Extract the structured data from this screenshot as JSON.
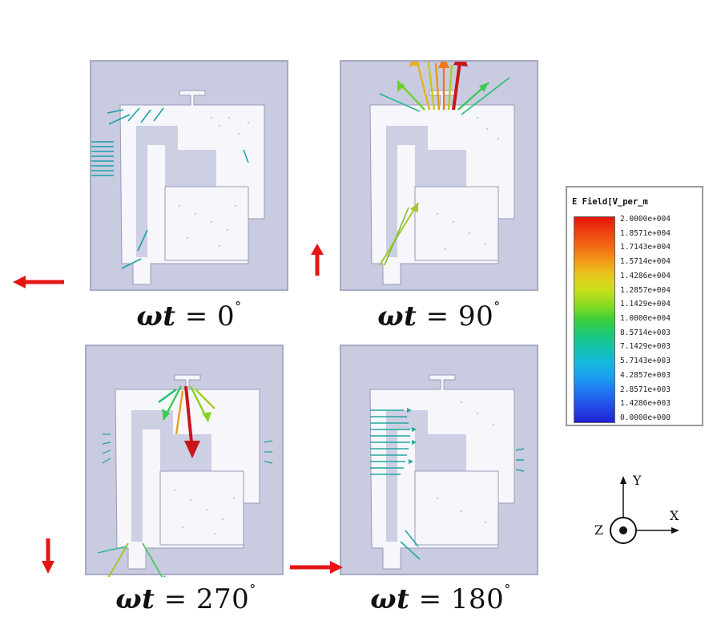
{
  "panels": [
    {
      "id": "0",
      "caption_prefix": "ωt",
      "equals": " = ",
      "angle": "0",
      "degree": "°"
    },
    {
      "id": "90",
      "caption_prefix": "ωt",
      "equals": " = ",
      "angle": "90",
      "degree": "°"
    },
    {
      "id": "270",
      "caption_prefix": "ωt",
      "equals": " = ",
      "angle": "270",
      "degree": "°"
    },
    {
      "id": "180",
      "caption_prefix": "ωt",
      "equals": " = ",
      "angle": "180",
      "degree": "°"
    }
  ],
  "legend": {
    "title": "E Field[V_per_m",
    "values": [
      "2.0000e+004",
      "1.8571e+004",
      "1.7143e+004",
      "1.5714e+004",
      "1.4286e+004",
      "1.2857e+004",
      "1.1429e+004",
      "1.0000e+004",
      "8.5714e+003",
      "7.1429e+003",
      "5.7143e+003",
      "4.2857e+003",
      "2.8571e+003",
      "1.4286e+003",
      "0.0000e+000"
    ],
    "colors": [
      "#e8140a",
      "#ee4010",
      "#f26a12",
      "#f29a18",
      "#e8c81c",
      "#c8e01c",
      "#8ada22",
      "#3cd03a",
      "#1cc878",
      "#14c2b0",
      "#16b6e0",
      "#1c9cf0",
      "#2070f0",
      "#2448e6",
      "#1e22d2"
    ]
  },
  "axes": {
    "x": "X",
    "y": "Y",
    "z": "Z"
  },
  "colors": {
    "indicator_arrow": "#e61414",
    "panel_bg": "#c9cbe0",
    "antenna_fill": "#f6f6fb"
  }
}
